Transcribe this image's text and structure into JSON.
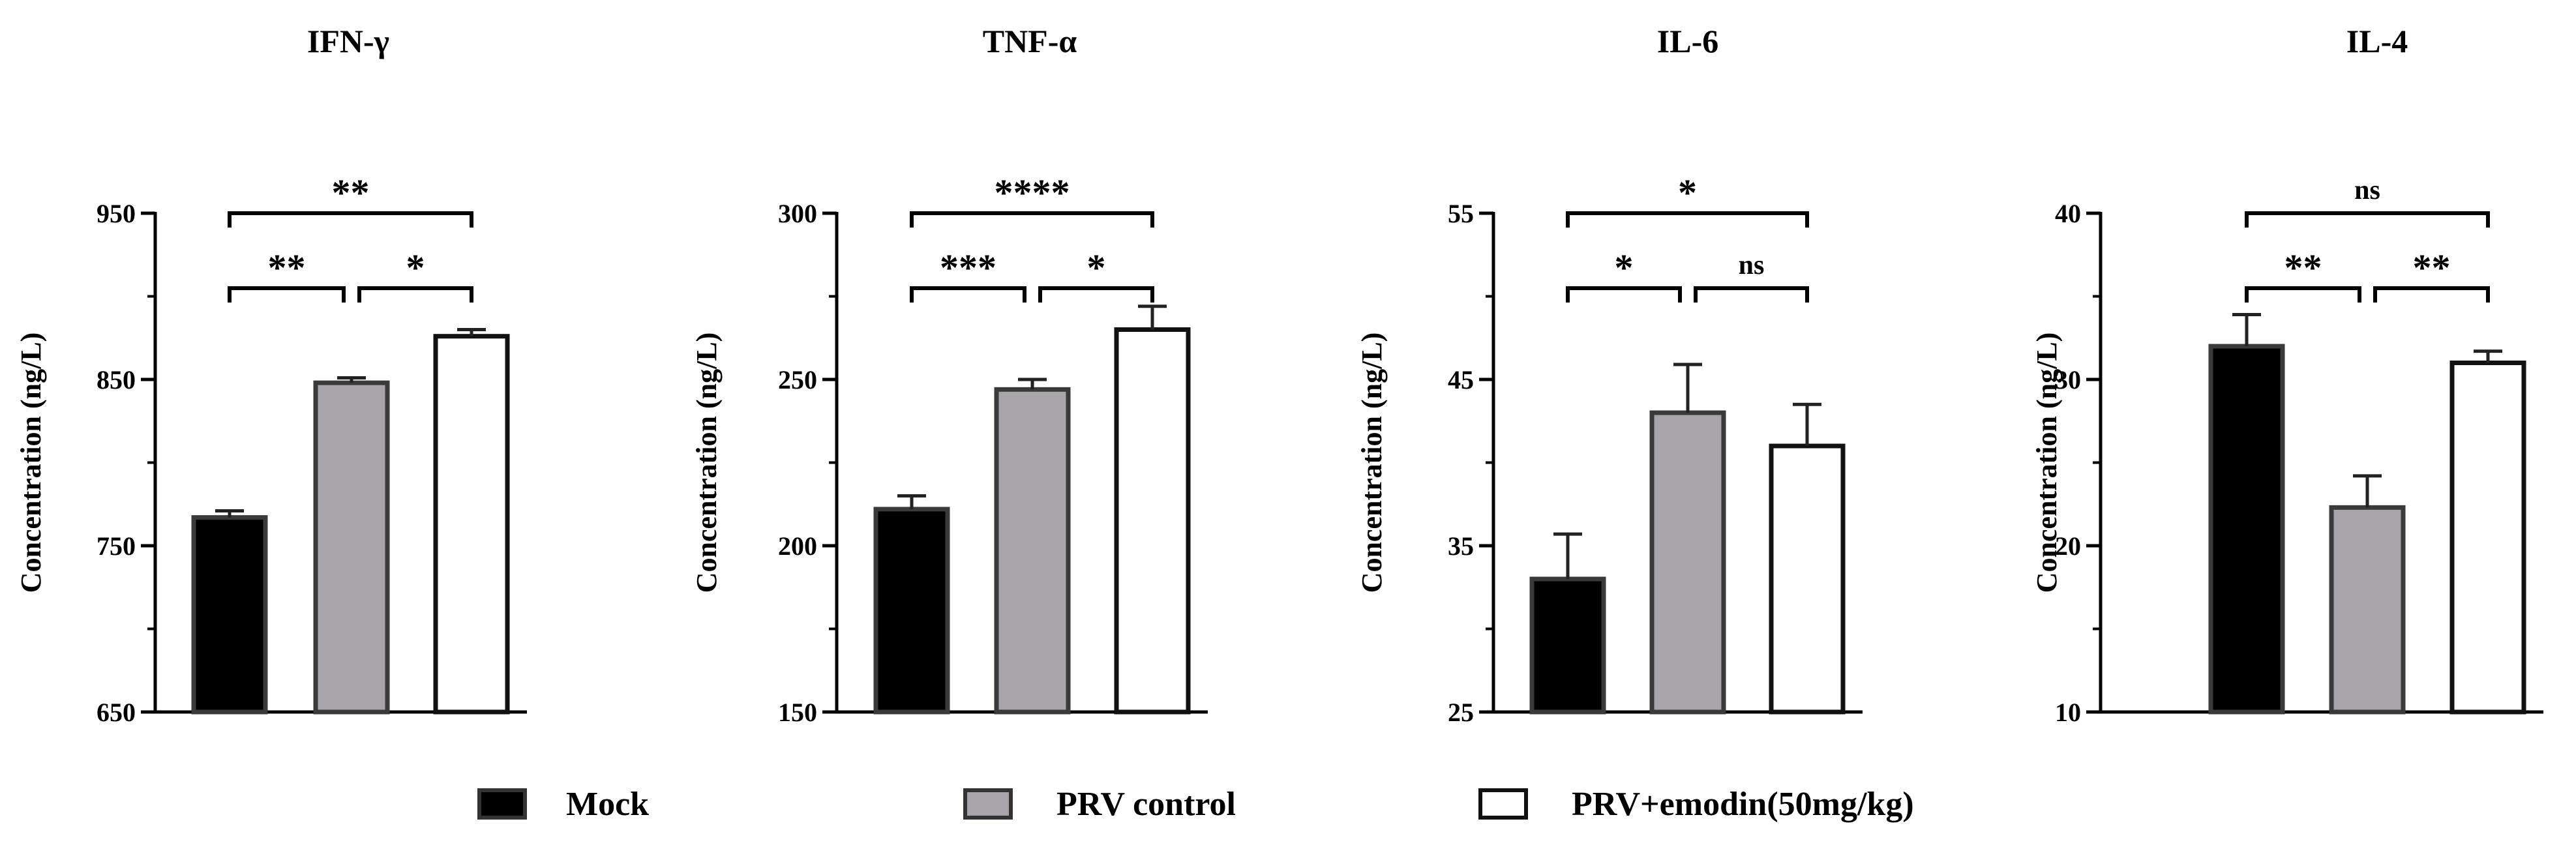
{
  "colors": {
    "mock": "#000000",
    "prv": "#a7a5aa",
    "emodin": "#ffffff",
    "bar_stroke": "#3a3a3a",
    "axis": "#000000"
  },
  "legend": {
    "entries": [
      {
        "label": "Mock",
        "color": "#000000"
      },
      {
        "label": "PRV control",
        "color": "#a7a5aa"
      },
      {
        "label": "PRV+emodin(50mg/kg)",
        "color": "#ffffff"
      }
    ]
  },
  "chart_data": [
    {
      "type": "bar",
      "title": "IFN-γ",
      "ylabel": "Concentration (ng/L)",
      "ylim": [
        650,
        950
      ],
      "yticks": [
        650,
        750,
        850,
        950
      ],
      "categories": [
        "Mock",
        "PRV control",
        "PRV+emodin(50mg/kg)"
      ],
      "values": [
        767,
        848,
        876
      ],
      "errors": [
        4,
        3,
        4
      ],
      "significance": [
        {
          "from": 0,
          "to": 1,
          "label": "**"
        },
        {
          "from": 1,
          "to": 2,
          "label": "*"
        },
        {
          "from": 0,
          "to": 2,
          "label": "**"
        }
      ]
    },
    {
      "type": "bar",
      "title": "TNF-α",
      "ylabel": "Concentration (ng/L)",
      "ylim": [
        150,
        300
      ],
      "yticks": [
        150,
        200,
        250,
        300
      ],
      "categories": [
        "Mock",
        "PRV control",
        "PRV+emodin(50mg/kg)"
      ],
      "values": [
        211,
        247,
        265
      ],
      "errors": [
        4,
        3,
        7
      ],
      "significance": [
        {
          "from": 0,
          "to": 1,
          "label": "***"
        },
        {
          "from": 1,
          "to": 2,
          "label": "*"
        },
        {
          "from": 0,
          "to": 2,
          "label": "****"
        }
      ]
    },
    {
      "type": "bar",
      "title": "IL-6",
      "ylabel": "Concentration (ng/L)",
      "ylim": [
        25,
        55
      ],
      "yticks": [
        25,
        35,
        45,
        55
      ],
      "categories": [
        "Mock",
        "PRV control",
        "PRV+emodin(50mg/kg)"
      ],
      "values": [
        33,
        43,
        41
      ],
      "errors": [
        2.7,
        2.9,
        2.5
      ],
      "significance": [
        {
          "from": 0,
          "to": 1,
          "label": "*"
        },
        {
          "from": 1,
          "to": 2,
          "label": "ns"
        },
        {
          "from": 0,
          "to": 2,
          "label": "*"
        }
      ]
    },
    {
      "type": "bar",
      "title": "IL-4",
      "ylabel": "Concentration (ng/L)",
      "ylim": [
        10,
        40
      ],
      "yticks": [
        10,
        20,
        30,
        40
      ],
      "categories": [
        "Mock",
        "PRV control",
        "PRV+emodin(50mg/kg)"
      ],
      "values": [
        32,
        22.3,
        31
      ],
      "errors": [
        1.9,
        1.9,
        0.7
      ],
      "significance": [
        {
          "from": 0,
          "to": 1,
          "label": "**"
        },
        {
          "from": 1,
          "to": 2,
          "label": "**"
        },
        {
          "from": 0,
          "to": 2,
          "label": "ns"
        }
      ]
    }
  ]
}
